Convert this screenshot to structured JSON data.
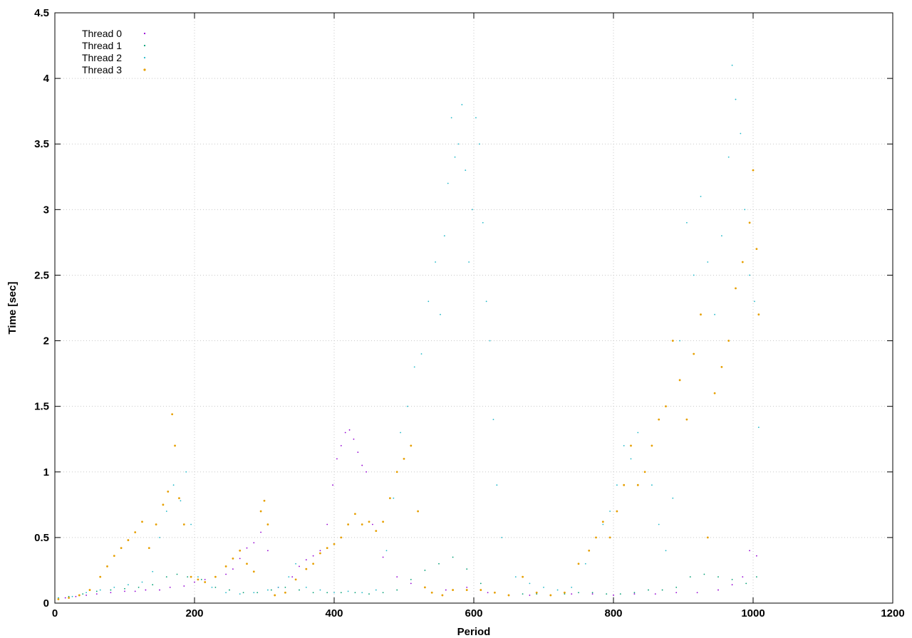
{
  "chart_data": {
    "type": "scatter",
    "title": "",
    "xlabel": "Period",
    "ylabel": "Time [sec]",
    "xlim": [
      0,
      1200
    ],
    "ylim": [
      0,
      4.5
    ],
    "x_ticks": [
      0,
      200,
      400,
      600,
      800,
      1000,
      1200
    ],
    "y_ticks": [
      0,
      0.5,
      1,
      1.5,
      2,
      2.5,
      3,
      3.5,
      4,
      4.5
    ],
    "grid": true,
    "legend_position": "top-left",
    "series": [
      {
        "name": "Thread 0",
        "color": "#9400d3",
        "points": [
          [
            5,
            0.03
          ],
          [
            15,
            0.04
          ],
          [
            30,
            0.05
          ],
          [
            45,
            0.06
          ],
          [
            60,
            0.07
          ],
          [
            80,
            0.08
          ],
          [
            100,
            0.09
          ],
          [
            115,
            0.09
          ],
          [
            130,
            0.1
          ],
          [
            150,
            0.1
          ],
          [
            165,
            0.12
          ],
          [
            185,
            0.13
          ],
          [
            200,
            0.16
          ],
          [
            215,
            0.18
          ],
          [
            230,
            0.2
          ],
          [
            245,
            0.22
          ],
          [
            255,
            0.26
          ],
          [
            265,
            0.34
          ],
          [
            275,
            0.42
          ],
          [
            285,
            0.46
          ],
          [
            295,
            0.54
          ],
          [
            305,
            0.4
          ],
          [
            320,
            0.12
          ],
          [
            340,
            0.2
          ],
          [
            350,
            0.28
          ],
          [
            360,
            0.33
          ],
          [
            370,
            0.36
          ],
          [
            380,
            0.4
          ],
          [
            390,
            0.6
          ],
          [
            398,
            0.9
          ],
          [
            404,
            1.1
          ],
          [
            410,
            1.2
          ],
          [
            416,
            1.3
          ],
          [
            422,
            1.32
          ],
          [
            428,
            1.25
          ],
          [
            434,
            1.15
          ],
          [
            440,
            1.05
          ],
          [
            446,
            1.0
          ],
          [
            455,
            0.6
          ],
          [
            470,
            0.35
          ],
          [
            490,
            0.2
          ],
          [
            510,
            0.15
          ],
          [
            530,
            0.12
          ],
          [
            560,
            0.1
          ],
          [
            590,
            0.12
          ],
          [
            620,
            0.08
          ],
          [
            650,
            0.06
          ],
          [
            680,
            0.06
          ],
          [
            710,
            0.06
          ],
          [
            740,
            0.07
          ],
          [
            770,
            0.07
          ],
          [
            800,
            0.06
          ],
          [
            830,
            0.07
          ],
          [
            860,
            0.07
          ],
          [
            890,
            0.08
          ],
          [
            920,
            0.08
          ],
          [
            950,
            0.1
          ],
          [
            970,
            0.14
          ],
          [
            985,
            0.2
          ],
          [
            995,
            0.4
          ],
          [
            1005,
            0.36
          ]
        ]
      },
      {
        "name": "Thread 1",
        "color": "#009e73",
        "points": [
          [
            5,
            0.04
          ],
          [
            20,
            0.05
          ],
          [
            40,
            0.07
          ],
          [
            60,
            0.09
          ],
          [
            80,
            0.1
          ],
          [
            100,
            0.11
          ],
          [
            120,
            0.12
          ],
          [
            140,
            0.14
          ],
          [
            160,
            0.2
          ],
          [
            175,
            0.22
          ],
          [
            190,
            0.2
          ],
          [
            210,
            0.18
          ],
          [
            230,
            0.12
          ],
          [
            250,
            0.1
          ],
          [
            270,
            0.08
          ],
          [
            290,
            0.08
          ],
          [
            310,
            0.1
          ],
          [
            330,
            0.12
          ],
          [
            350,
            0.1
          ],
          [
            370,
            0.08
          ],
          [
            390,
            0.08
          ],
          [
            410,
            0.08
          ],
          [
            430,
            0.08
          ],
          [
            450,
            0.07
          ],
          [
            470,
            0.08
          ],
          [
            490,
            0.1
          ],
          [
            510,
            0.18
          ],
          [
            530,
            0.25
          ],
          [
            550,
            0.3
          ],
          [
            570,
            0.35
          ],
          [
            590,
            0.26
          ],
          [
            610,
            0.15
          ],
          [
            630,
            0.08
          ],
          [
            650,
            0.06
          ],
          [
            670,
            0.07
          ],
          [
            690,
            0.07
          ],
          [
            710,
            0.06
          ],
          [
            730,
            0.07
          ],
          [
            750,
            0.08
          ],
          [
            770,
            0.08
          ],
          [
            790,
            0.07
          ],
          [
            810,
            0.07
          ],
          [
            830,
            0.08
          ],
          [
            850,
            0.1
          ],
          [
            870,
            0.1
          ],
          [
            890,
            0.12
          ],
          [
            910,
            0.2
          ],
          [
            930,
            0.22
          ],
          [
            950,
            0.2
          ],
          [
            970,
            0.18
          ],
          [
            990,
            0.15
          ],
          [
            1005,
            0.2
          ]
        ]
      },
      {
        "name": "Thread 2",
        "color": "#1fb8c8",
        "points": [
          [
            5,
            0.04
          ],
          [
            25,
            0.05
          ],
          [
            45,
            0.08
          ],
          [
            65,
            0.1
          ],
          [
            85,
            0.12
          ],
          [
            105,
            0.14
          ],
          [
            125,
            0.16
          ],
          [
            140,
            0.24
          ],
          [
            150,
            0.5
          ],
          [
            160,
            0.7
          ],
          [
            170,
            0.9
          ],
          [
            180,
            0.78
          ],
          [
            188,
            1.0
          ],
          [
            195,
            0.6
          ],
          [
            205,
            0.2
          ],
          [
            225,
            0.12
          ],
          [
            245,
            0.08
          ],
          [
            265,
            0.07
          ],
          [
            285,
            0.08
          ],
          [
            305,
            0.1
          ],
          [
            320,
            0.12
          ],
          [
            335,
            0.2
          ],
          [
            345,
            0.3
          ],
          [
            360,
            0.12
          ],
          [
            380,
            0.1
          ],
          [
            400,
            0.08
          ],
          [
            420,
            0.09
          ],
          [
            440,
            0.08
          ],
          [
            460,
            0.1
          ],
          [
            475,
            0.4
          ],
          [
            485,
            0.8
          ],
          [
            495,
            1.3
          ],
          [
            505,
            1.5
          ],
          [
            515,
            1.8
          ],
          [
            525,
            1.9
          ],
          [
            535,
            2.3
          ],
          [
            545,
            2.6
          ],
          [
            552,
            2.2
          ],
          [
            558,
            2.8
          ],
          [
            563,
            3.2
          ],
          [
            568,
            3.7
          ],
          [
            573,
            3.4
          ],
          [
            578,
            3.5
          ],
          [
            583,
            3.8
          ],
          [
            588,
            3.3
          ],
          [
            593,
            2.6
          ],
          [
            598,
            3.0
          ],
          [
            603,
            3.7
          ],
          [
            608,
            3.5
          ],
          [
            613,
            2.9
          ],
          [
            618,
            2.3
          ],
          [
            623,
            2.0
          ],
          [
            628,
            1.4
          ],
          [
            633,
            0.9
          ],
          [
            640,
            0.5
          ],
          [
            660,
            0.2
          ],
          [
            680,
            0.15
          ],
          [
            700,
            0.12
          ],
          [
            720,
            0.1
          ],
          [
            740,
            0.12
          ],
          [
            760,
            0.3
          ],
          [
            775,
            0.5
          ],
          [
            785,
            0.6
          ],
          [
            795,
            0.7
          ],
          [
            805,
            0.9
          ],
          [
            815,
            1.2
          ],
          [
            825,
            1.1
          ],
          [
            835,
            1.3
          ],
          [
            845,
            1.0
          ],
          [
            855,
            0.9
          ],
          [
            865,
            0.6
          ],
          [
            875,
            0.4
          ],
          [
            885,
            0.8
          ],
          [
            895,
            2.0
          ],
          [
            905,
            2.9
          ],
          [
            915,
            2.5
          ],
          [
            925,
            3.1
          ],
          [
            935,
            2.6
          ],
          [
            945,
            2.2
          ],
          [
            955,
            2.8
          ],
          [
            965,
            3.4
          ],
          [
            970,
            4.1
          ],
          [
            975,
            3.84
          ],
          [
            982,
            3.58
          ],
          [
            988,
            3.0
          ],
          [
            995,
            2.5
          ],
          [
            1002,
            2.3
          ],
          [
            1008,
            1.34
          ]
        ]
      },
      {
        "name": "Thread 3",
        "color": "#e69f00",
        "points": [
          [
            5,
            0.03
          ],
          [
            20,
            0.04
          ],
          [
            35,
            0.06
          ],
          [
            50,
            0.1
          ],
          [
            65,
            0.2
          ],
          [
            75,
            0.28
          ],
          [
            85,
            0.36
          ],
          [
            95,
            0.42
          ],
          [
            105,
            0.48
          ],
          [
            115,
            0.54
          ],
          [
            125,
            0.62
          ],
          [
            135,
            0.42
          ],
          [
            145,
            0.6
          ],
          [
            155,
            0.75
          ],
          [
            162,
            0.85
          ],
          [
            168,
            1.44
          ],
          [
            172,
            1.2
          ],
          [
            178,
            0.8
          ],
          [
            185,
            0.6
          ],
          [
            195,
            0.2
          ],
          [
            205,
            0.18
          ],
          [
            215,
            0.16
          ],
          [
            230,
            0.2
          ],
          [
            245,
            0.28
          ],
          [
            255,
            0.34
          ],
          [
            265,
            0.4
          ],
          [
            275,
            0.3
          ],
          [
            285,
            0.24
          ],
          [
            295,
            0.7
          ],
          [
            300,
            0.78
          ],
          [
            305,
            0.6
          ],
          [
            315,
            0.06
          ],
          [
            330,
            0.08
          ],
          [
            345,
            0.18
          ],
          [
            360,
            0.26
          ],
          [
            370,
            0.3
          ],
          [
            380,
            0.38
          ],
          [
            390,
            0.42
          ],
          [
            400,
            0.45
          ],
          [
            410,
            0.5
          ],
          [
            420,
            0.6
          ],
          [
            430,
            0.68
          ],
          [
            440,
            0.6
          ],
          [
            450,
            0.62
          ],
          [
            460,
            0.55
          ],
          [
            470,
            0.62
          ],
          [
            480,
            0.8
          ],
          [
            490,
            1.0
          ],
          [
            500,
            1.1
          ],
          [
            510,
            1.2
          ],
          [
            520,
            0.7
          ],
          [
            530,
            0.12
          ],
          [
            540,
            0.08
          ],
          [
            555,
            0.06
          ],
          [
            570,
            0.1
          ],
          [
            590,
            0.1
          ],
          [
            610,
            0.1
          ],
          [
            630,
            0.08
          ],
          [
            650,
            0.06
          ],
          [
            670,
            0.2
          ],
          [
            690,
            0.08
          ],
          [
            710,
            0.06
          ],
          [
            730,
            0.08
          ],
          [
            750,
            0.3
          ],
          [
            765,
            0.4
          ],
          [
            775,
            0.5
          ],
          [
            785,
            0.62
          ],
          [
            795,
            0.5
          ],
          [
            805,
            0.7
          ],
          [
            815,
            0.9
          ],
          [
            825,
            1.2
          ],
          [
            835,
            0.9
          ],
          [
            845,
            1.0
          ],
          [
            855,
            1.2
          ],
          [
            865,
            1.4
          ],
          [
            875,
            1.5
          ],
          [
            885,
            2.0
          ],
          [
            895,
            1.7
          ],
          [
            905,
            1.4
          ],
          [
            915,
            1.9
          ],
          [
            925,
            2.2
          ],
          [
            935,
            0.5
          ],
          [
            945,
            1.6
          ],
          [
            955,
            1.8
          ],
          [
            965,
            2.0
          ],
          [
            975,
            2.4
          ],
          [
            985,
            2.6
          ],
          [
            995,
            2.9
          ],
          [
            1000,
            3.3
          ],
          [
            1005,
            2.7
          ],
          [
            1008,
            2.2
          ]
        ]
      }
    ]
  }
}
